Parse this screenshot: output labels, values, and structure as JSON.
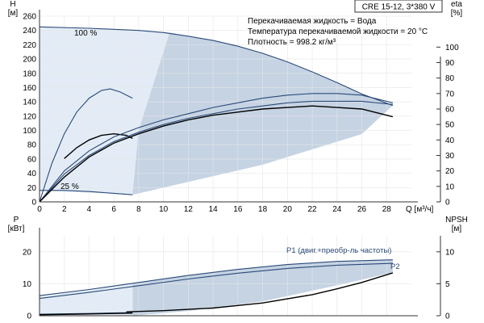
{
  "model": "CRE 15-12, 3*380 V",
  "info_lines": [
    "Перекачиваемая жидкость = Вода",
    "Температура перекачиваемой жидкости = 20 °C",
    "Плотность = 998.2 кг/м³"
  ],
  "colors": {
    "region_fill": "#c5d3e3",
    "region_light": "#e3ecf6",
    "curve_blue": "#2b4a78",
    "curve_black": "#000000",
    "axis": "#333333"
  },
  "chart_data": [
    {
      "name": "head",
      "type": "line",
      "xlabel": "Q [м³/ч]",
      "ylabel_left": "H\n[м]",
      "ylabel_right": "eta\n[%]",
      "xlim": [
        0,
        30
      ],
      "ylim_left": [
        0,
        260
      ],
      "ylim_right": [
        0,
        120
      ],
      "xticks": [
        0,
        2,
        4,
        6,
        8,
        10,
        12,
        14,
        16,
        18,
        20,
        22,
        24,
        26,
        28
      ],
      "yticks_left": [
        0,
        20,
        40,
        60,
        80,
        100,
        120,
        140,
        160,
        180,
        200,
        220,
        240,
        260
      ],
      "yticks_right": [
        0,
        10,
        20,
        30,
        40,
        50,
        60,
        70,
        80,
        90,
        100
      ],
      "grid": true,
      "labels": [
        "100 %",
        "25 %"
      ],
      "series": [
        {
          "axis": "left",
          "color": "blue",
          "x": [
            0,
            4,
            8,
            10,
            12,
            14,
            16,
            18,
            20,
            22,
            24,
            26,
            28.5
          ],
          "y": [
            245,
            243,
            240,
            237,
            232,
            226,
            218,
            208,
            196,
            182,
            167,
            151,
            135
          ]
        },
        {
          "axis": "left",
          "color": "blue",
          "x": [
            0,
            2,
            4,
            6,
            7.5
          ],
          "y": [
            16,
            16,
            14.5,
            12,
            10
          ]
        },
        {
          "axis": "right",
          "color": "blue",
          "x": [
            0,
            1,
            2,
            3,
            4,
            5,
            5.7,
            6.5,
            7.5
          ],
          "y": [
            0,
            25,
            44,
            58,
            67,
            72,
            73,
            71,
            67
          ]
        },
        {
          "axis": "right",
          "color": "black",
          "x": [
            2,
            3,
            4,
            5,
            6,
            7,
            7.5
          ],
          "y": [
            28,
            35,
            40,
            43,
            44,
            43,
            41
          ]
        },
        {
          "axis": "right",
          "color": "blue",
          "x": [
            0,
            2,
            4,
            6,
            8,
            10,
            12,
            14,
            16,
            18,
            20,
            22,
            24,
            26,
            28.5
          ],
          "y": [
            0,
            20,
            33,
            42,
            48,
            53,
            57,
            61,
            64,
            67,
            69,
            70,
            70,
            69,
            64
          ]
        },
        {
          "axis": "right",
          "color": "blue",
          "x": [
            0,
            2,
            4,
            6,
            8,
            10,
            12,
            14,
            16,
            18,
            20,
            22,
            24,
            26,
            28.5
          ],
          "y": [
            0,
            18,
            30,
            39,
            45,
            50,
            54,
            57,
            60,
            62,
            64,
            65,
            65,
            65,
            63
          ]
        },
        {
          "axis": "right",
          "color": "black",
          "x": [
            0,
            2,
            4,
            6,
            8,
            10,
            12,
            14,
            16,
            18,
            20,
            22,
            24,
            26,
            28.5
          ],
          "y": [
            0,
            16,
            29,
            38,
            44,
            49,
            53,
            56,
            58,
            60,
            61,
            62,
            61,
            60,
            55
          ]
        }
      ]
    },
    {
      "name": "power",
      "type": "line",
      "xlabel": "",
      "ylabel_left": "P\n[кВт]",
      "ylabel_right": "NPSH\n[м]",
      "xlim": [
        0,
        30
      ],
      "ylim_left": [
        0,
        25
      ],
      "ylim_right": [
        0,
        12.5
      ],
      "yticks_left": [
        0,
        10,
        20
      ],
      "yticks_right": [
        0,
        5,
        10
      ],
      "grid": true,
      "labels": [
        "P1 (двиг.+преобр-ль частоты)",
        "P2"
      ],
      "series": [
        {
          "axis": "left",
          "color": "blue",
          "name": "P1 (двиг.+преобр-ль частоты)",
          "x": [
            0,
            4,
            8,
            12,
            16,
            20,
            24,
            28.5
          ],
          "y": [
            6.3,
            8.2,
            10.4,
            12.6,
            14.5,
            16.0,
            17.0,
            17.5
          ]
        },
        {
          "axis": "left",
          "color": "blue",
          "name": "P2",
          "x": [
            0,
            4,
            8,
            12,
            16,
            20,
            24,
            28.5
          ],
          "y": [
            5.4,
            7.3,
            9.4,
            11.5,
            13.3,
            14.8,
            15.8,
            16.4
          ]
        },
        {
          "axis": "left",
          "color": "blue",
          "x": [
            0,
            4,
            7.5
          ],
          "y": [
            0.5,
            0.7,
            1.0
          ]
        },
        {
          "axis": "left",
          "color": "black",
          "x": [
            0,
            3,
            7.5
          ],
          "y": [
            0.3,
            0.5,
            0.8
          ]
        },
        {
          "axis": "right",
          "color": "black",
          "x": [
            7,
            10,
            14,
            18,
            22,
            24,
            26,
            28.5
          ],
          "y": [
            0.6,
            0.8,
            1.2,
            2.0,
            3.3,
            4.2,
            5.2,
            6.7
          ]
        }
      ]
    }
  ]
}
